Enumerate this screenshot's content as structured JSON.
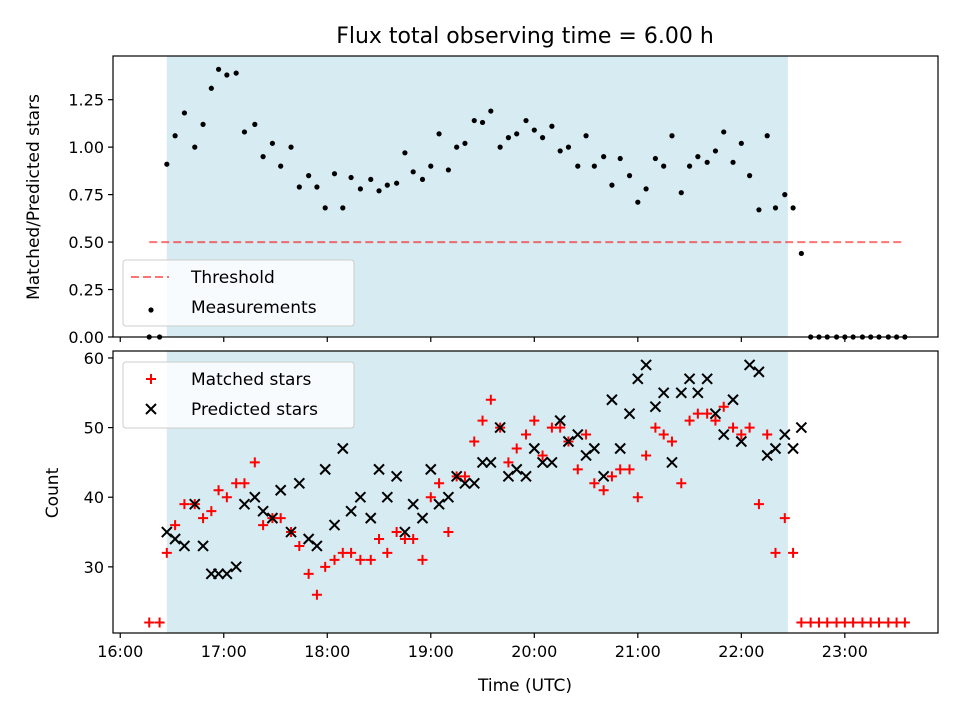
{
  "figure": {
    "title": "Flux total observing time = 6.00 h",
    "xlabel": "Time (UTC)",
    "x_tick_labels": [
      "16:00",
      "17:00",
      "18:00",
      "19:00",
      "20:00",
      "21:00",
      "22:00",
      "23:00"
    ]
  },
  "colors": {
    "shade": "#add8e6",
    "threshold": "#ff0000",
    "matched": "#ff0000",
    "predicted": "#000000",
    "measurements": "#000000"
  },
  "chart_data": [
    {
      "type": "scatter",
      "panel": "top",
      "title": "Flux total observing time = 6.00 h",
      "xlabel": "",
      "ylabel": "Matched/Predicted stars",
      "x_unit": "hours (UTC)",
      "xlim": [
        15.93,
        23.9
      ],
      "ylim": [
        0,
        1.48
      ],
      "y_ticks": [
        0.0,
        0.25,
        0.5,
        0.75,
        1.0,
        1.25
      ],
      "y_tick_labels": [
        "0.00",
        "0.25",
        "0.50",
        "0.75",
        "1.00",
        "1.25"
      ],
      "shaded_span": [
        16.45,
        22.45
      ],
      "threshold": {
        "name": "Threshold",
        "value": 0.5,
        "x_range": [
          16.28,
          23.55
        ],
        "style": "dashed"
      },
      "legend": {
        "placement": "lower-left",
        "entries": [
          "Threshold",
          "Measurements"
        ]
      },
      "series": [
        {
          "name": "Measurements",
          "marker": "dot",
          "points": [
            [
              16.28,
              0.0
            ],
            [
              16.38,
              0.0
            ],
            [
              16.45,
              0.91
            ],
            [
              16.53,
              1.06
            ],
            [
              16.62,
              1.18
            ],
            [
              16.72,
              1.0
            ],
            [
              16.8,
              1.12
            ],
            [
              16.88,
              1.31
            ],
            [
              16.95,
              1.41
            ],
            [
              17.03,
              1.38
            ],
            [
              17.12,
              1.39
            ],
            [
              17.2,
              1.08
            ],
            [
              17.3,
              1.12
            ],
            [
              17.38,
              0.95
            ],
            [
              17.47,
              1.02
            ],
            [
              17.55,
              0.9
            ],
            [
              17.65,
              1.0
            ],
            [
              17.73,
              0.79
            ],
            [
              17.82,
              0.85
            ],
            [
              17.9,
              0.79
            ],
            [
              17.98,
              0.68
            ],
            [
              18.07,
              0.86
            ],
            [
              18.15,
              0.68
            ],
            [
              18.23,
              0.84
            ],
            [
              18.32,
              0.78
            ],
            [
              18.42,
              0.83
            ],
            [
              18.5,
              0.77
            ],
            [
              18.58,
              0.8
            ],
            [
              18.67,
              0.81
            ],
            [
              18.75,
              0.97
            ],
            [
              18.83,
              0.87
            ],
            [
              18.92,
              0.83
            ],
            [
              19.0,
              0.9
            ],
            [
              19.08,
              1.07
            ],
            [
              19.17,
              0.88
            ],
            [
              19.25,
              1.0
            ],
            [
              19.33,
              1.02
            ],
            [
              19.42,
              1.14
            ],
            [
              19.5,
              1.13
            ],
            [
              19.58,
              1.19
            ],
            [
              19.67,
              1.0
            ],
            [
              19.75,
              1.05
            ],
            [
              19.83,
              1.07
            ],
            [
              19.92,
              1.14
            ],
            [
              20.0,
              1.09
            ],
            [
              20.08,
              1.05
            ],
            [
              20.17,
              1.11
            ],
            [
              20.25,
              0.98
            ],
            [
              20.33,
              1.0
            ],
            [
              20.42,
              0.9
            ],
            [
              20.5,
              1.06
            ],
            [
              20.58,
              0.9
            ],
            [
              20.67,
              0.95
            ],
            [
              20.75,
              0.8
            ],
            [
              20.83,
              0.94
            ],
            [
              20.92,
              0.85
            ],
            [
              21.0,
              0.71
            ],
            [
              21.08,
              0.78
            ],
            [
              21.17,
              0.94
            ],
            [
              21.25,
              0.9
            ],
            [
              21.33,
              1.06
            ],
            [
              21.42,
              0.76
            ],
            [
              21.5,
              0.9
            ],
            [
              21.58,
              0.95
            ],
            [
              21.67,
              0.92
            ],
            [
              21.75,
              0.98
            ],
            [
              21.83,
              1.08
            ],
            [
              21.92,
              0.92
            ],
            [
              22.0,
              1.02
            ],
            [
              22.08,
              0.85
            ],
            [
              22.17,
              0.67
            ],
            [
              22.25,
              1.06
            ],
            [
              22.33,
              0.68
            ],
            [
              22.42,
              0.75
            ],
            [
              22.5,
              0.68
            ],
            [
              22.58,
              0.44
            ],
            [
              22.67,
              0.0
            ],
            [
              22.75,
              0.0
            ],
            [
              22.83,
              0.0
            ],
            [
              22.92,
              0.0
            ],
            [
              23.0,
              0.0
            ],
            [
              23.08,
              0.0
            ],
            [
              23.17,
              0.0
            ],
            [
              23.25,
              0.0
            ],
            [
              23.33,
              0.0
            ],
            [
              23.42,
              0.0
            ],
            [
              23.5,
              0.0
            ],
            [
              23.58,
              0.0
            ]
          ]
        }
      ]
    },
    {
      "type": "scatter",
      "panel": "bottom",
      "xlabel": "Time (UTC)",
      "ylabel": "Count",
      "x_unit": "hours (UTC)",
      "xlim": [
        15.93,
        23.9
      ],
      "ylim": [
        20.5,
        61
      ],
      "y_ticks": [
        30,
        40,
        50,
        60
      ],
      "y_tick_labels": [
        "30",
        "40",
        "50",
        "60"
      ],
      "shaded_span": [
        16.45,
        22.45
      ],
      "legend": {
        "placement": "upper-left",
        "entries": [
          "Matched stars",
          "Predicted stars"
        ]
      },
      "series": [
        {
          "name": "Matched stars",
          "marker": "plus",
          "points": [
            [
              16.28,
              22
            ],
            [
              16.38,
              22
            ],
            [
              16.45,
              32
            ],
            [
              16.53,
              36
            ],
            [
              16.62,
              39
            ],
            [
              16.72,
              39
            ],
            [
              16.8,
              37
            ],
            [
              16.88,
              38
            ],
            [
              16.95,
              41
            ],
            [
              17.03,
              40
            ],
            [
              17.12,
              42
            ],
            [
              17.2,
              42
            ],
            [
              17.3,
              45
            ],
            [
              17.38,
              36
            ],
            [
              17.47,
              37
            ],
            [
              17.55,
              37
            ],
            [
              17.65,
              35
            ],
            [
              17.73,
              33
            ],
            [
              17.82,
              29
            ],
            [
              17.9,
              26
            ],
            [
              17.98,
              30
            ],
            [
              18.07,
              31
            ],
            [
              18.15,
              32
            ],
            [
              18.23,
              32
            ],
            [
              18.32,
              31
            ],
            [
              18.42,
              31
            ],
            [
              18.5,
              34
            ],
            [
              18.58,
              32
            ],
            [
              18.67,
              35
            ],
            [
              18.75,
              34
            ],
            [
              18.83,
              34
            ],
            [
              18.92,
              31
            ],
            [
              19.0,
              40
            ],
            [
              19.08,
              42
            ],
            [
              19.17,
              35
            ],
            [
              19.25,
              43
            ],
            [
              19.33,
              43
            ],
            [
              19.42,
              48
            ],
            [
              19.5,
              51
            ],
            [
              19.58,
              54
            ],
            [
              19.67,
              50
            ],
            [
              19.75,
              45
            ],
            [
              19.83,
              47
            ],
            [
              19.92,
              49
            ],
            [
              20.0,
              51
            ],
            [
              20.08,
              46
            ],
            [
              20.17,
              50
            ],
            [
              20.25,
              50
            ],
            [
              20.33,
              48
            ],
            [
              20.42,
              44
            ],
            [
              20.5,
              49
            ],
            [
              20.58,
              42
            ],
            [
              20.67,
              41
            ],
            [
              20.75,
              43
            ],
            [
              20.83,
              44
            ],
            [
              20.92,
              44
            ],
            [
              21.0,
              40
            ],
            [
              21.08,
              46
            ],
            [
              21.17,
              50
            ],
            [
              21.25,
              49
            ],
            [
              21.33,
              48
            ],
            [
              21.42,
              42
            ],
            [
              21.5,
              51
            ],
            [
              21.58,
              52
            ],
            [
              21.67,
              52
            ],
            [
              21.75,
              51
            ],
            [
              21.83,
              53
            ],
            [
              21.92,
              50
            ],
            [
              22.0,
              49
            ],
            [
              22.08,
              50
            ],
            [
              22.17,
              39
            ],
            [
              22.25,
              49
            ],
            [
              22.33,
              32
            ],
            [
              22.42,
              37
            ],
            [
              22.5,
              32
            ],
            [
              22.58,
              22
            ],
            [
              22.67,
              22
            ],
            [
              22.75,
              22
            ],
            [
              22.83,
              22
            ],
            [
              22.92,
              22
            ],
            [
              23.0,
              22
            ],
            [
              23.08,
              22
            ],
            [
              23.17,
              22
            ],
            [
              23.25,
              22
            ],
            [
              23.33,
              22
            ],
            [
              23.42,
              22
            ],
            [
              23.5,
              22
            ],
            [
              23.58,
              22
            ]
          ]
        },
        {
          "name": "Predicted stars",
          "marker": "x",
          "points": [
            [
              16.45,
              35
            ],
            [
              16.53,
              34
            ],
            [
              16.62,
              33
            ],
            [
              16.72,
              39
            ],
            [
              16.8,
              33
            ],
            [
              16.88,
              29
            ],
            [
              16.95,
              29
            ],
            [
              17.03,
              29
            ],
            [
              17.12,
              30
            ],
            [
              17.2,
              39
            ],
            [
              17.3,
              40
            ],
            [
              17.38,
              38
            ],
            [
              17.47,
              37
            ],
            [
              17.55,
              41
            ],
            [
              17.65,
              35
            ],
            [
              17.73,
              42
            ],
            [
              17.82,
              34
            ],
            [
              17.9,
              33
            ],
            [
              17.98,
              44
            ],
            [
              18.07,
              36
            ],
            [
              18.15,
              47
            ],
            [
              18.23,
              38
            ],
            [
              18.32,
              40
            ],
            [
              18.42,
              37
            ],
            [
              18.5,
              44
            ],
            [
              18.58,
              40
            ],
            [
              18.67,
              43
            ],
            [
              18.75,
              35
            ],
            [
              18.83,
              39
            ],
            [
              18.92,
              37
            ],
            [
              19.0,
              44
            ],
            [
              19.08,
              39
            ],
            [
              19.17,
              40
            ],
            [
              19.25,
              43
            ],
            [
              19.33,
              42
            ],
            [
              19.42,
              42
            ],
            [
              19.5,
              45
            ],
            [
              19.58,
              45
            ],
            [
              19.67,
              50
            ],
            [
              19.75,
              43
            ],
            [
              19.83,
              44
            ],
            [
              19.92,
              43
            ],
            [
              20.0,
              47
            ],
            [
              20.08,
              45
            ],
            [
              20.17,
              45
            ],
            [
              20.25,
              51
            ],
            [
              20.33,
              48
            ],
            [
              20.42,
              49
            ],
            [
              20.5,
              46
            ],
            [
              20.58,
              47
            ],
            [
              20.67,
              43
            ],
            [
              20.75,
              54
            ],
            [
              20.83,
              47
            ],
            [
              20.92,
              52
            ],
            [
              21.0,
              57
            ],
            [
              21.08,
              59
            ],
            [
              21.17,
              53
            ],
            [
              21.25,
              55
            ],
            [
              21.33,
              45
            ],
            [
              21.42,
              55
            ],
            [
              21.5,
              57
            ],
            [
              21.58,
              55
            ],
            [
              21.67,
              57
            ],
            [
              21.75,
              52
            ],
            [
              21.83,
              49
            ],
            [
              21.92,
              54
            ],
            [
              22.0,
              48
            ],
            [
              22.08,
              59
            ],
            [
              22.17,
              58
            ],
            [
              22.25,
              46
            ],
            [
              22.33,
              47
            ],
            [
              22.42,
              49
            ],
            [
              22.5,
              47
            ],
            [
              22.58,
              50
            ]
          ]
        }
      ]
    }
  ]
}
